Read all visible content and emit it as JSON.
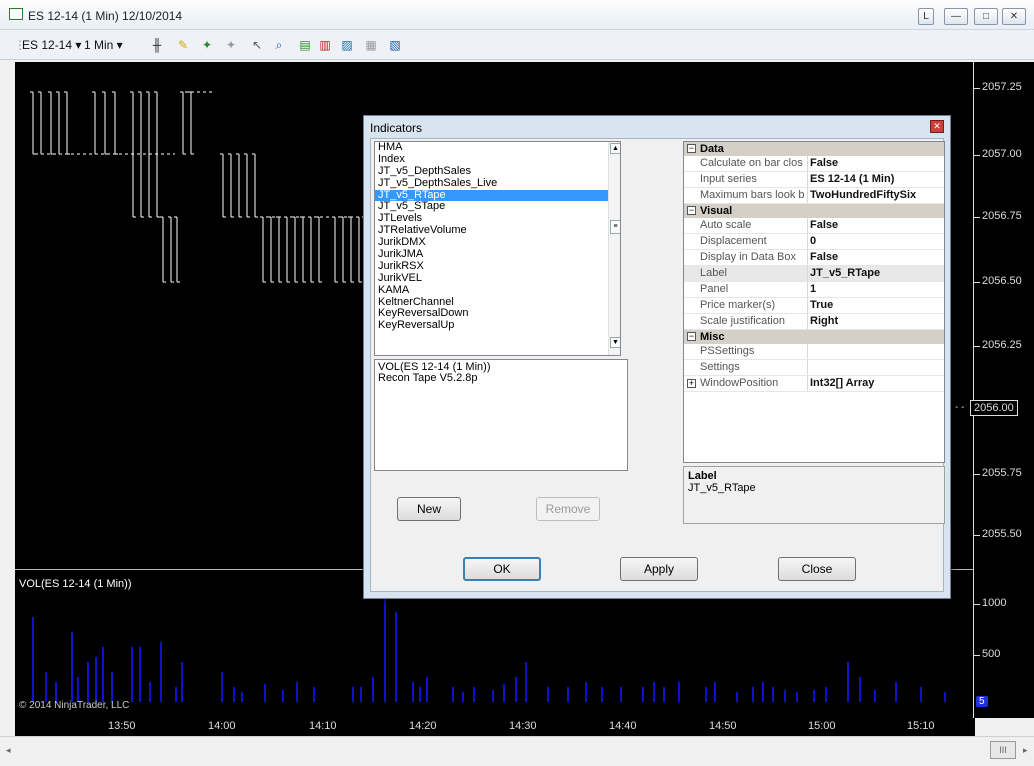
{
  "window": {
    "title": "ES 12-14 (1 Min) 12/10/2014",
    "buttons": [
      "L",
      "—",
      "□",
      "✕"
    ]
  },
  "toolbar": {
    "instrument": "ES 12-14",
    "interval": "1 Min",
    "icons": [
      "bar-type-icon",
      "drawing-pen-icon",
      "add-marker-icon",
      "remove-marker-icon",
      "cursor-icon",
      "zoom-icon",
      "strategies-icon",
      "indicators-icon",
      "chart-style-icon",
      "data-box-icon",
      "properties-icon"
    ]
  },
  "chart": {
    "price_axis": [
      "2057.25",
      "2057.00",
      "2056.75",
      "2056.50",
      "2056.25",
      "2056.00",
      "2055.75",
      "2055.50"
    ],
    "current_price": "2056.00",
    "volume_panel_title": "VOL(ES 12-14 (1 Min))",
    "volume_axis": [
      "1000",
      "500"
    ],
    "volume_marker": "5",
    "copyright": "© 2014 NinjaTrader, LLC",
    "time_axis": [
      "13:50",
      "14:00",
      "14:10",
      "14:20",
      "14:30",
      "14:40",
      "14:50",
      "15:00",
      "15:10"
    ],
    "colors": {
      "background": "#000000",
      "volume_bar": "#1010d0",
      "bar": "#ffffff"
    }
  },
  "dialog": {
    "title": "Indicators",
    "close_label": "✕",
    "available_indicators": [
      "HMA",
      "Index",
      "JT_v5_DepthSales",
      "JT_v5_DepthSales_Live",
      "JT_v5_RTape",
      "JT_v5_STape",
      "JTLevels",
      "JTRelativeVolume",
      "JurikDMX",
      "JurikJMA",
      "JurikRSX",
      "JurikVEL",
      "KAMA",
      "KeltnerChannel",
      "KeyReversalDown",
      "KeyReversalUp"
    ],
    "selected_indicator": "JT_v5_RTape",
    "applied_indicators": [
      "VOL(ES 12-14 (1 Min))",
      "Recon Tape V5.2.8p"
    ],
    "new_label": "New",
    "remove_label": "Remove",
    "properties": {
      "data": {
        "title": "Data",
        "rows": [
          [
            "Calculate on bar clos",
            "False"
          ],
          [
            "Input series",
            "ES 12-14 (1 Min)"
          ],
          [
            "Maximum bars look b",
            "TwoHundredFiftySix"
          ]
        ]
      },
      "visual": {
        "title": "Visual",
        "rows": [
          [
            "Auto scale",
            "False"
          ],
          [
            "Displacement",
            "0"
          ],
          [
            "Display in Data Box",
            "False"
          ],
          [
            "Label",
            "JT_v5_RTape"
          ],
          [
            "Panel",
            "1"
          ],
          [
            "Price marker(s)",
            "True"
          ],
          [
            "Scale justification",
            "Right"
          ]
        ]
      },
      "misc": {
        "title": "Misc",
        "rows": [
          [
            "PSSettings",
            ""
          ],
          [
            "Settings",
            ""
          ],
          [
            "WindowPosition",
            "Int32[] Array"
          ]
        ]
      }
    },
    "help_title": "Label",
    "help_text": "JT_v5_RTape",
    "ok_label": "OK",
    "apply_label": "Apply",
    "close_button_label": "Close"
  }
}
